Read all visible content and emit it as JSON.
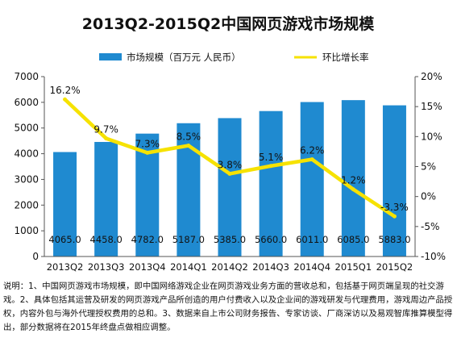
{
  "chart_data": {
    "type": "bar",
    "title": "2013Q2-2015Q2中国网页游戏市场规模",
    "categories": [
      "2013Q2",
      "2013Q3",
      "2013Q4",
      "2014Q1",
      "2014Q2",
      "2014Q3",
      "2014Q4",
      "2015Q1",
      "2015Q2"
    ],
    "series": [
      {
        "name": "市场规模（百万元 人民币）",
        "type": "bar",
        "axis": "left",
        "color": "#1f8ad0",
        "values": [
          4065.0,
          4458.0,
          4782.0,
          5187.0,
          5385.0,
          5660.0,
          6011.0,
          6085.0,
          5883.0
        ],
        "labels": [
          "4065.0",
          "4458.0",
          "4782.0",
          "5187.0",
          "5385.0",
          "5660.0",
          "6011.0",
          "6085.0",
          "5883.0"
        ]
      },
      {
        "name": "环比增长率",
        "type": "line",
        "axis": "right",
        "color": "#f6e200",
        "values": [
          16.2,
          9.7,
          7.3,
          8.5,
          3.8,
          5.1,
          6.2,
          1.2,
          -3.3
        ],
        "labels": [
          "16.2%",
          "9.7%",
          "7.3%",
          "8.5%",
          "3.8%",
          "5.1%",
          "6.2%",
          "1.2%",
          "-3.3%"
        ]
      }
    ],
    "y_left": {
      "min": 0,
      "max": 7000,
      "ticks": [
        "0",
        "1000",
        "2000",
        "3000",
        "4000",
        "5000",
        "6000",
        "7000"
      ]
    },
    "y_right": {
      "min": -10,
      "max": 20,
      "ticks": [
        "-10%",
        "-5%",
        "0%",
        "5%",
        "10%",
        "15%",
        "20%"
      ]
    },
    "legend_position": "top-center",
    "grid": false
  },
  "notes": "说明：1、中国网页游戏市场规模，即中国网络游戏企业在网页游戏业务方面的营收总和，包括基于网页端呈现的社交游戏。2、具体包括其运营及研发的网页游戏产品所创造的用户付费收入以及企业间的游戏研发与代理费用，游戏周边产品授权，内容外包与海外代理授权费用的总和。3、数据来自上市公司财务报告、专家访谈、厂商深访以及易观智库推算模型得出，部分数据将在2015年终盘点做相应调整。"
}
